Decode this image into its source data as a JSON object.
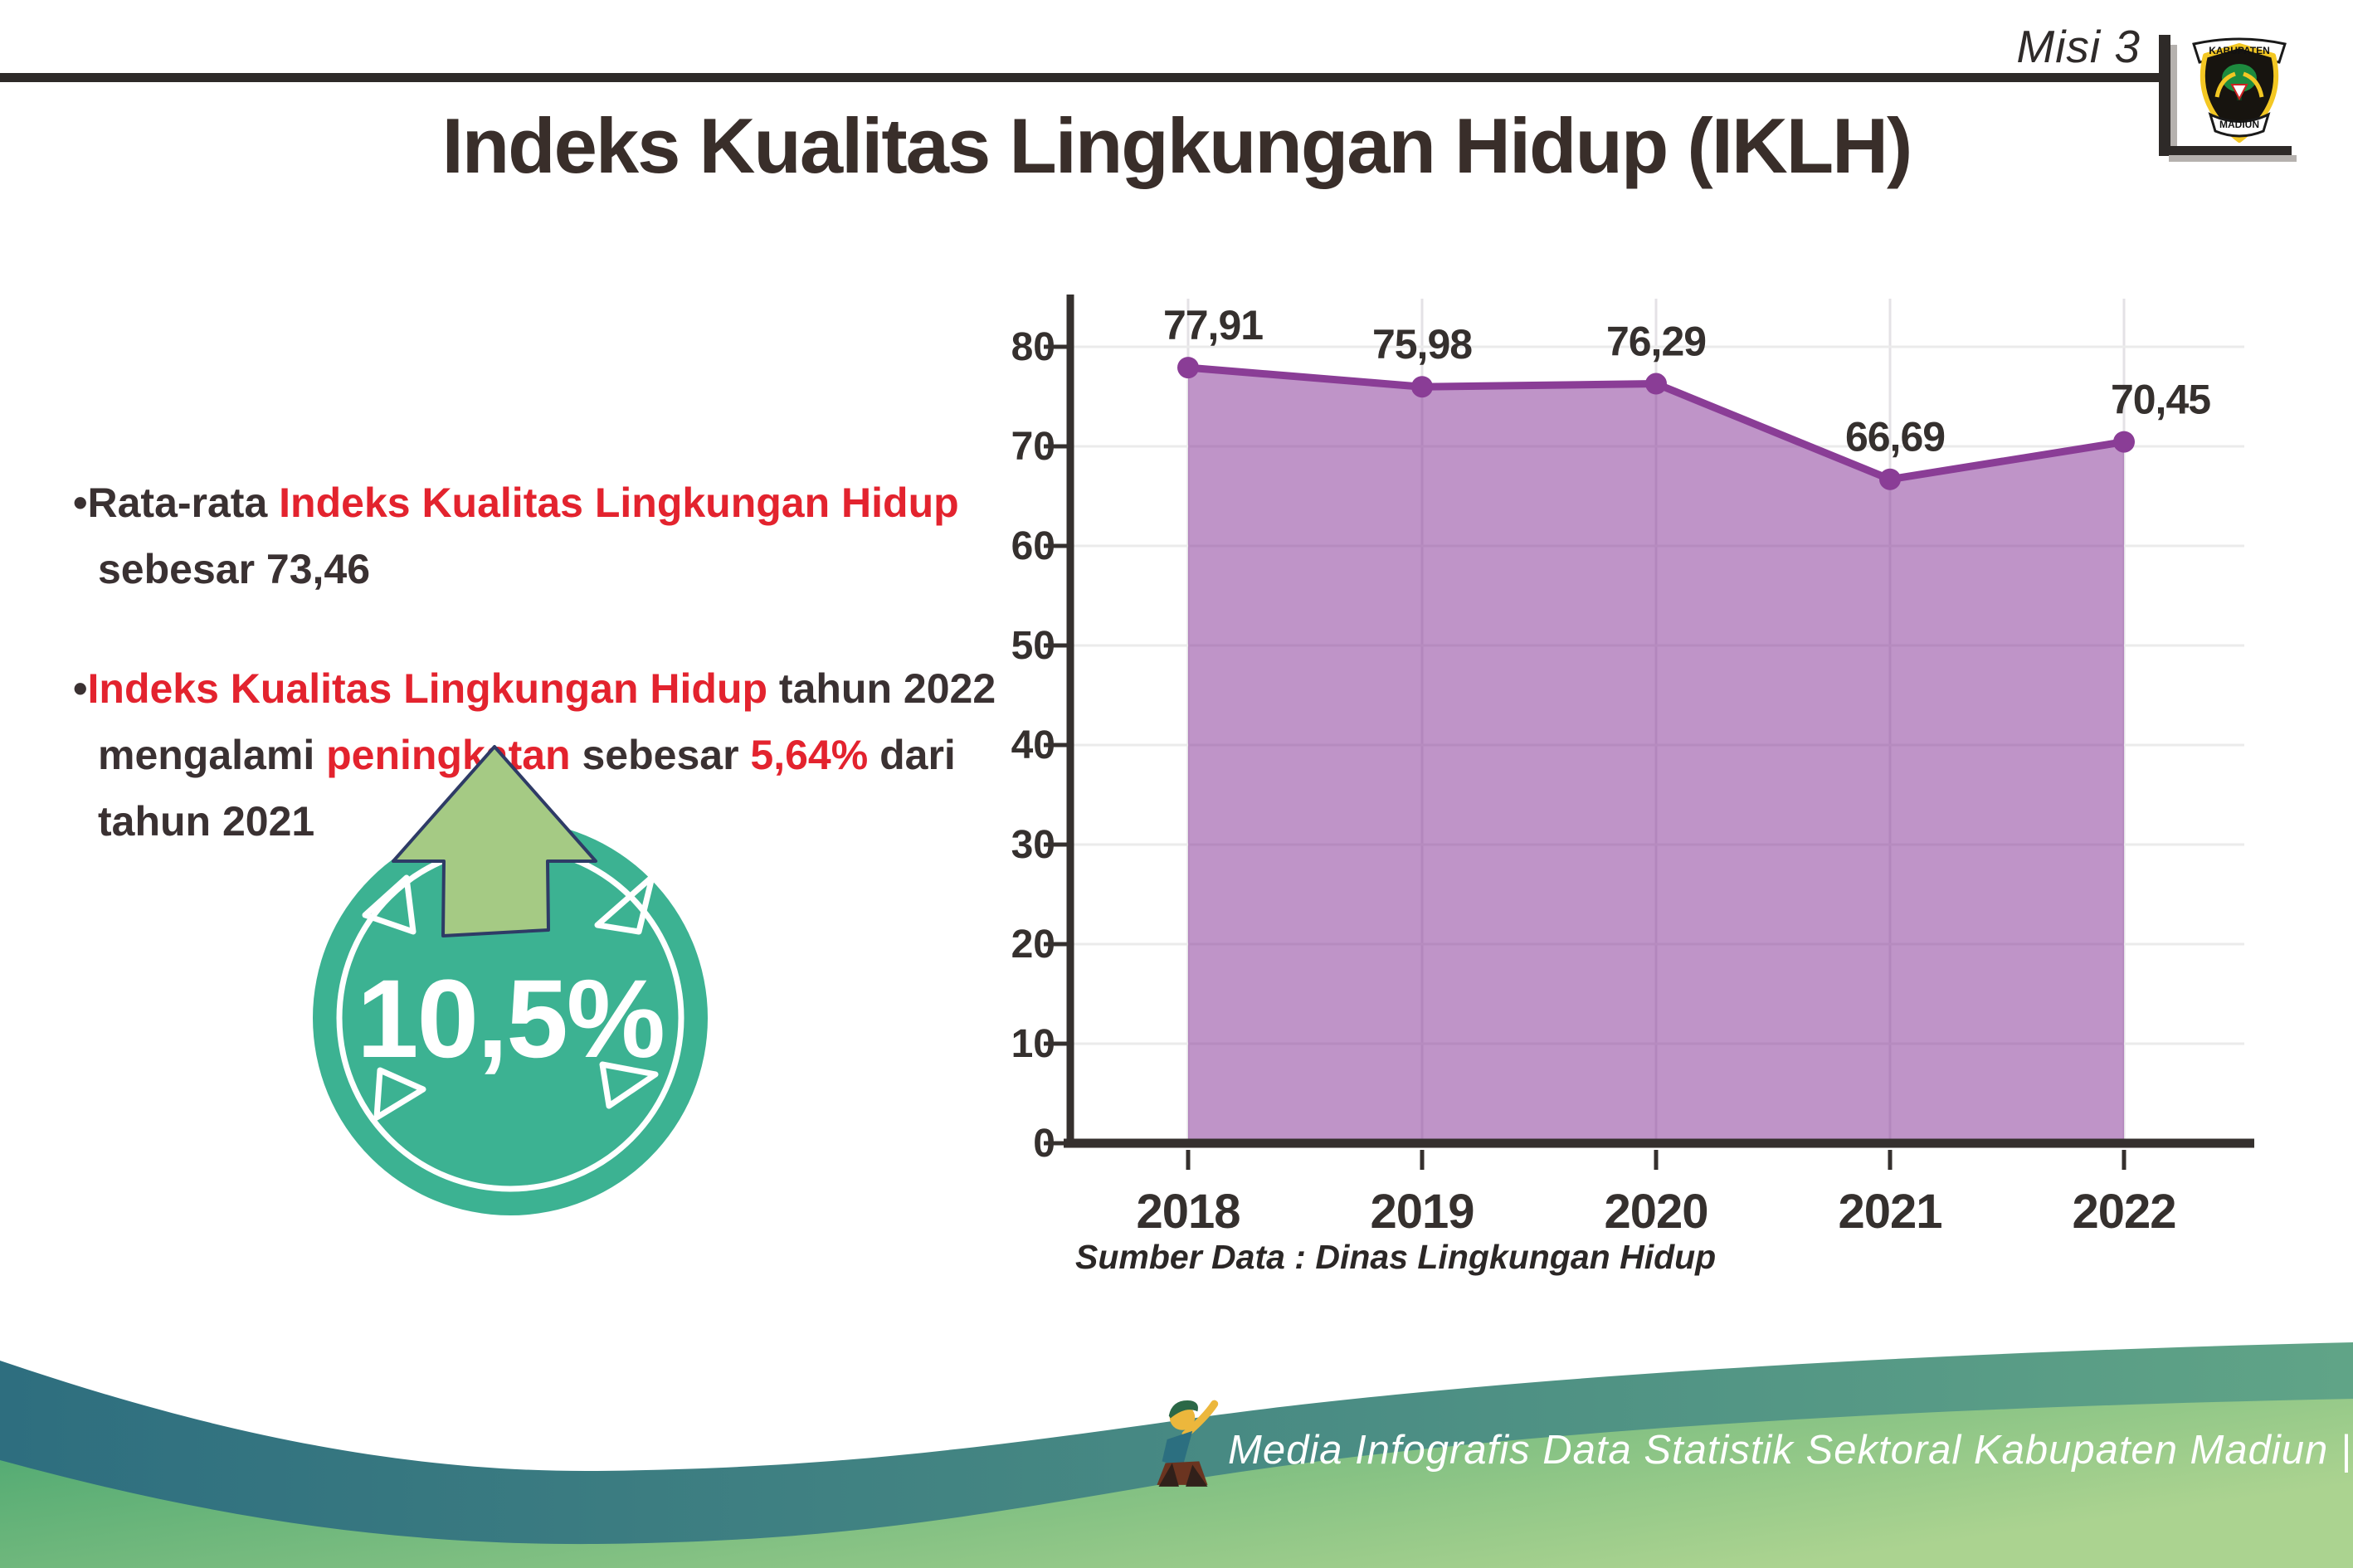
{
  "header": {
    "misi_label": "Misi 3",
    "logo": {
      "top_text": "KABUPATEN",
      "bottom_text": "MADIUN"
    }
  },
  "title": "Indeks Kualitas Lingkungan Hidup (IKLH)",
  "bullets": [
    {
      "segments": [
        {
          "text": "Rata-rata ",
          "color": "dark"
        },
        {
          "text": "Indeks Kualitas Lingkungan Hidup",
          "color": "red"
        },
        {
          "text": " sebesar 73,46",
          "color": "dark"
        }
      ]
    },
    {
      "segments": [
        {
          "text": "Indeks Kualitas Lingkungan Hidup",
          "color": "red"
        },
        {
          "text": " tahun 2022 mengalami ",
          "color": "dark"
        },
        {
          "text": "peningkatan",
          "color": "red"
        },
        {
          "text": " sebesar ",
          "color": "dark"
        },
        {
          "text": "5,64%",
          "color": "red"
        },
        {
          "text": " dari tahun 2021",
          "color": "dark"
        }
      ]
    }
  ],
  "badge": {
    "value": "10,5%"
  },
  "chart_data": {
    "type": "area",
    "title": "",
    "categories": [
      "2018",
      "2019",
      "2020",
      "2021",
      "2022"
    ],
    "values": [
      77.91,
      75.98,
      76.29,
      66.69,
      70.45
    ],
    "value_labels": [
      "77,91",
      "75,98",
      "76,29",
      "66,69",
      "70,45"
    ],
    "yticks": [
      0,
      10,
      20,
      30,
      40,
      50,
      60,
      70,
      80
    ],
    "ylim": [
      0,
      85
    ],
    "grid": true,
    "legend": "none",
    "xlabel": "",
    "ylabel": ""
  },
  "source_caption": "Sumber Data : Dinas Lingkungan Hidup",
  "footer": {
    "caption": "Media Infografis Data Statistik Sektoral Kabupaten Madiun |"
  },
  "colors": {
    "red": "#e3232e",
    "dark_text": "#3a3132",
    "title_text": "#392e2a",
    "badge_teal": "#3cb292",
    "arrow_green": "#a5ca84",
    "arrow_outline": "#2e3b66",
    "chart_line": "#8a3d96",
    "chart_fill": "rgba(138,61,155,0.55)",
    "axis": "#35302e",
    "grid_line": "#ebebeb",
    "wave_teal_left": "#2e6e7f",
    "wave_teal_right": "#60a487",
    "wave_green_left": "#47a56f",
    "wave_green_right": "#abd390"
  }
}
